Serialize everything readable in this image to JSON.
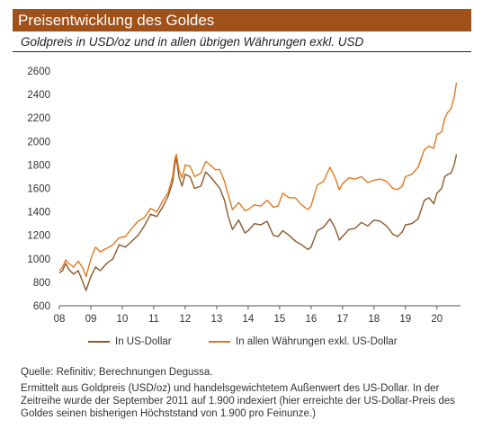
{
  "title": "Preisentwicklung des Goldes",
  "subtitle": "Goldpreis in USD/oz und in allen übrigen Währungen exkl. USD",
  "chart_data": {
    "type": "line",
    "title": "Preisentwicklung des Goldes",
    "subtitle": "Goldpreis in USD/oz und in allen übrigen Währungen exkl. USD",
    "xlabel": "",
    "ylabel": "",
    "x_ticks": [
      "08",
      "09",
      "10",
      "11",
      "12",
      "13",
      "14",
      "15",
      "16",
      "17",
      "18",
      "19",
      "20"
    ],
    "xlim": [
      2008.0,
      2020.75
    ],
    "ylim": [
      600,
      2600
    ],
    "y_ticks": [
      600,
      800,
      1000,
      1200,
      1400,
      1600,
      1800,
      2000,
      2200,
      2400,
      2600
    ],
    "grid": {
      "x": false,
      "y": false
    },
    "legend_position": "bottom",
    "series": [
      {
        "name": "In US-Dollar",
        "color": "#8b5a2b",
        "x": [
          2008.0,
          2008.1,
          2008.2,
          2008.3,
          2008.45,
          2008.6,
          2008.75,
          2008.85,
          2009.0,
          2009.15,
          2009.3,
          2009.5,
          2009.7,
          2009.9,
          2010.1,
          2010.3,
          2010.5,
          2010.7,
          2010.9,
          2011.1,
          2011.3,
          2011.45,
          2011.6,
          2011.67,
          2011.72,
          2011.8,
          2011.9,
          2012.0,
          2012.15,
          2012.3,
          2012.5,
          2012.65,
          2012.8,
          2012.95,
          2013.1,
          2013.25,
          2013.35,
          2013.5,
          2013.7,
          2013.9,
          2014.0,
          2014.2,
          2014.4,
          2014.6,
          2014.8,
          2014.95,
          2015.1,
          2015.3,
          2015.5,
          2015.7,
          2015.9,
          2016.0,
          2016.2,
          2016.4,
          2016.6,
          2016.75,
          2016.9,
          2017.0,
          2017.2,
          2017.4,
          2017.6,
          2017.8,
          2018.0,
          2018.2,
          2018.4,
          2018.6,
          2018.75,
          2018.9,
          2019.0,
          2019.2,
          2019.4,
          2019.6,
          2019.75,
          2019.9,
          2020.0,
          2020.15,
          2020.25,
          2020.35,
          2020.45,
          2020.55,
          2020.62
        ],
        "values": [
          880,
          900,
          960,
          910,
          870,
          900,
          800,
          730,
          850,
          930,
          900,
          960,
          1000,
          1120,
          1100,
          1150,
          1200,
          1280,
          1380,
          1360,
          1450,
          1530,
          1650,
          1800,
          1860,
          1700,
          1620,
          1720,
          1700,
          1600,
          1620,
          1740,
          1700,
          1650,
          1600,
          1500,
          1380,
          1250,
          1330,
          1220,
          1240,
          1300,
          1290,
          1320,
          1200,
          1190,
          1240,
          1200,
          1150,
          1120,
          1080,
          1100,
          1240,
          1270,
          1340,
          1270,
          1160,
          1190,
          1250,
          1260,
          1310,
          1280,
          1330,
          1320,
          1280,
          1210,
          1190,
          1230,
          1290,
          1300,
          1340,
          1500,
          1520,
          1470,
          1560,
          1600,
          1700,
          1720,
          1730,
          1800,
          1890
        ]
      },
      {
        "name": "In allen Währungen exkl. US-Dollar",
        "color": "#e07a1f",
        "x": [
          2008.0,
          2008.1,
          2008.2,
          2008.3,
          2008.45,
          2008.6,
          2008.75,
          2008.85,
          2009.0,
          2009.15,
          2009.3,
          2009.5,
          2009.7,
          2009.9,
          2010.1,
          2010.3,
          2010.5,
          2010.7,
          2010.9,
          2011.1,
          2011.3,
          2011.45,
          2011.6,
          2011.67,
          2011.72,
          2011.8,
          2011.9,
          2012.0,
          2012.15,
          2012.3,
          2012.5,
          2012.65,
          2012.8,
          2012.95,
          2013.1,
          2013.25,
          2013.35,
          2013.5,
          2013.7,
          2013.9,
          2014.0,
          2014.2,
          2014.4,
          2014.6,
          2014.8,
          2014.95,
          2015.1,
          2015.3,
          2015.5,
          2015.7,
          2015.9,
          2016.0,
          2016.2,
          2016.4,
          2016.6,
          2016.75,
          2016.9,
          2017.0,
          2017.2,
          2017.4,
          2017.6,
          2017.8,
          2018.0,
          2018.2,
          2018.4,
          2018.6,
          2018.75,
          2018.9,
          2019.0,
          2019.2,
          2019.4,
          2019.6,
          2019.75,
          2019.9,
          2020.0,
          2020.15,
          2020.25,
          2020.35,
          2020.45,
          2020.55,
          2020.62
        ],
        "values": [
          900,
          930,
          990,
          960,
          930,
          980,
          920,
          850,
          1000,
          1100,
          1060,
          1090,
          1120,
          1180,
          1190,
          1260,
          1320,
          1350,
          1430,
          1400,
          1500,
          1560,
          1700,
          1850,
          1890,
          1760,
          1690,
          1800,
          1790,
          1700,
          1730,
          1830,
          1800,
          1760,
          1760,
          1660,
          1560,
          1420,
          1480,
          1410,
          1420,
          1460,
          1450,
          1500,
          1440,
          1450,
          1560,
          1520,
          1520,
          1460,
          1420,
          1450,
          1630,
          1660,
          1780,
          1700,
          1590,
          1640,
          1690,
          1680,
          1700,
          1650,
          1670,
          1680,
          1660,
          1600,
          1590,
          1620,
          1700,
          1720,
          1780,
          1930,
          1960,
          1940,
          2060,
          2080,
          2200,
          2250,
          2280,
          2380,
          2500
        ]
      }
    ]
  },
  "legend": [
    {
      "label": "In US-Dollar",
      "color": "#8b5a2b"
    },
    {
      "label": "In allen Währungen exkl. US-Dollar",
      "color": "#e07a1f"
    }
  ],
  "source": "Quelle: Refinitiv; Berechnungen Degussa.",
  "note": "Ermittelt aus Goldpreis (USD/oz) und handelsgewichtetem Außenwert des US-Dollar. In der Zeitreihe wurde der September 2011 auf 1.900 indexiert (hier erreichte der US-Dollar-Preis des Goldes seinen bisherigen Höchststand von 1.900 pro Feinunze.)",
  "colors": {
    "title_bar": "#a0511a",
    "usd_series": "#8b5a2b",
    "other_series": "#e07a1f"
  }
}
